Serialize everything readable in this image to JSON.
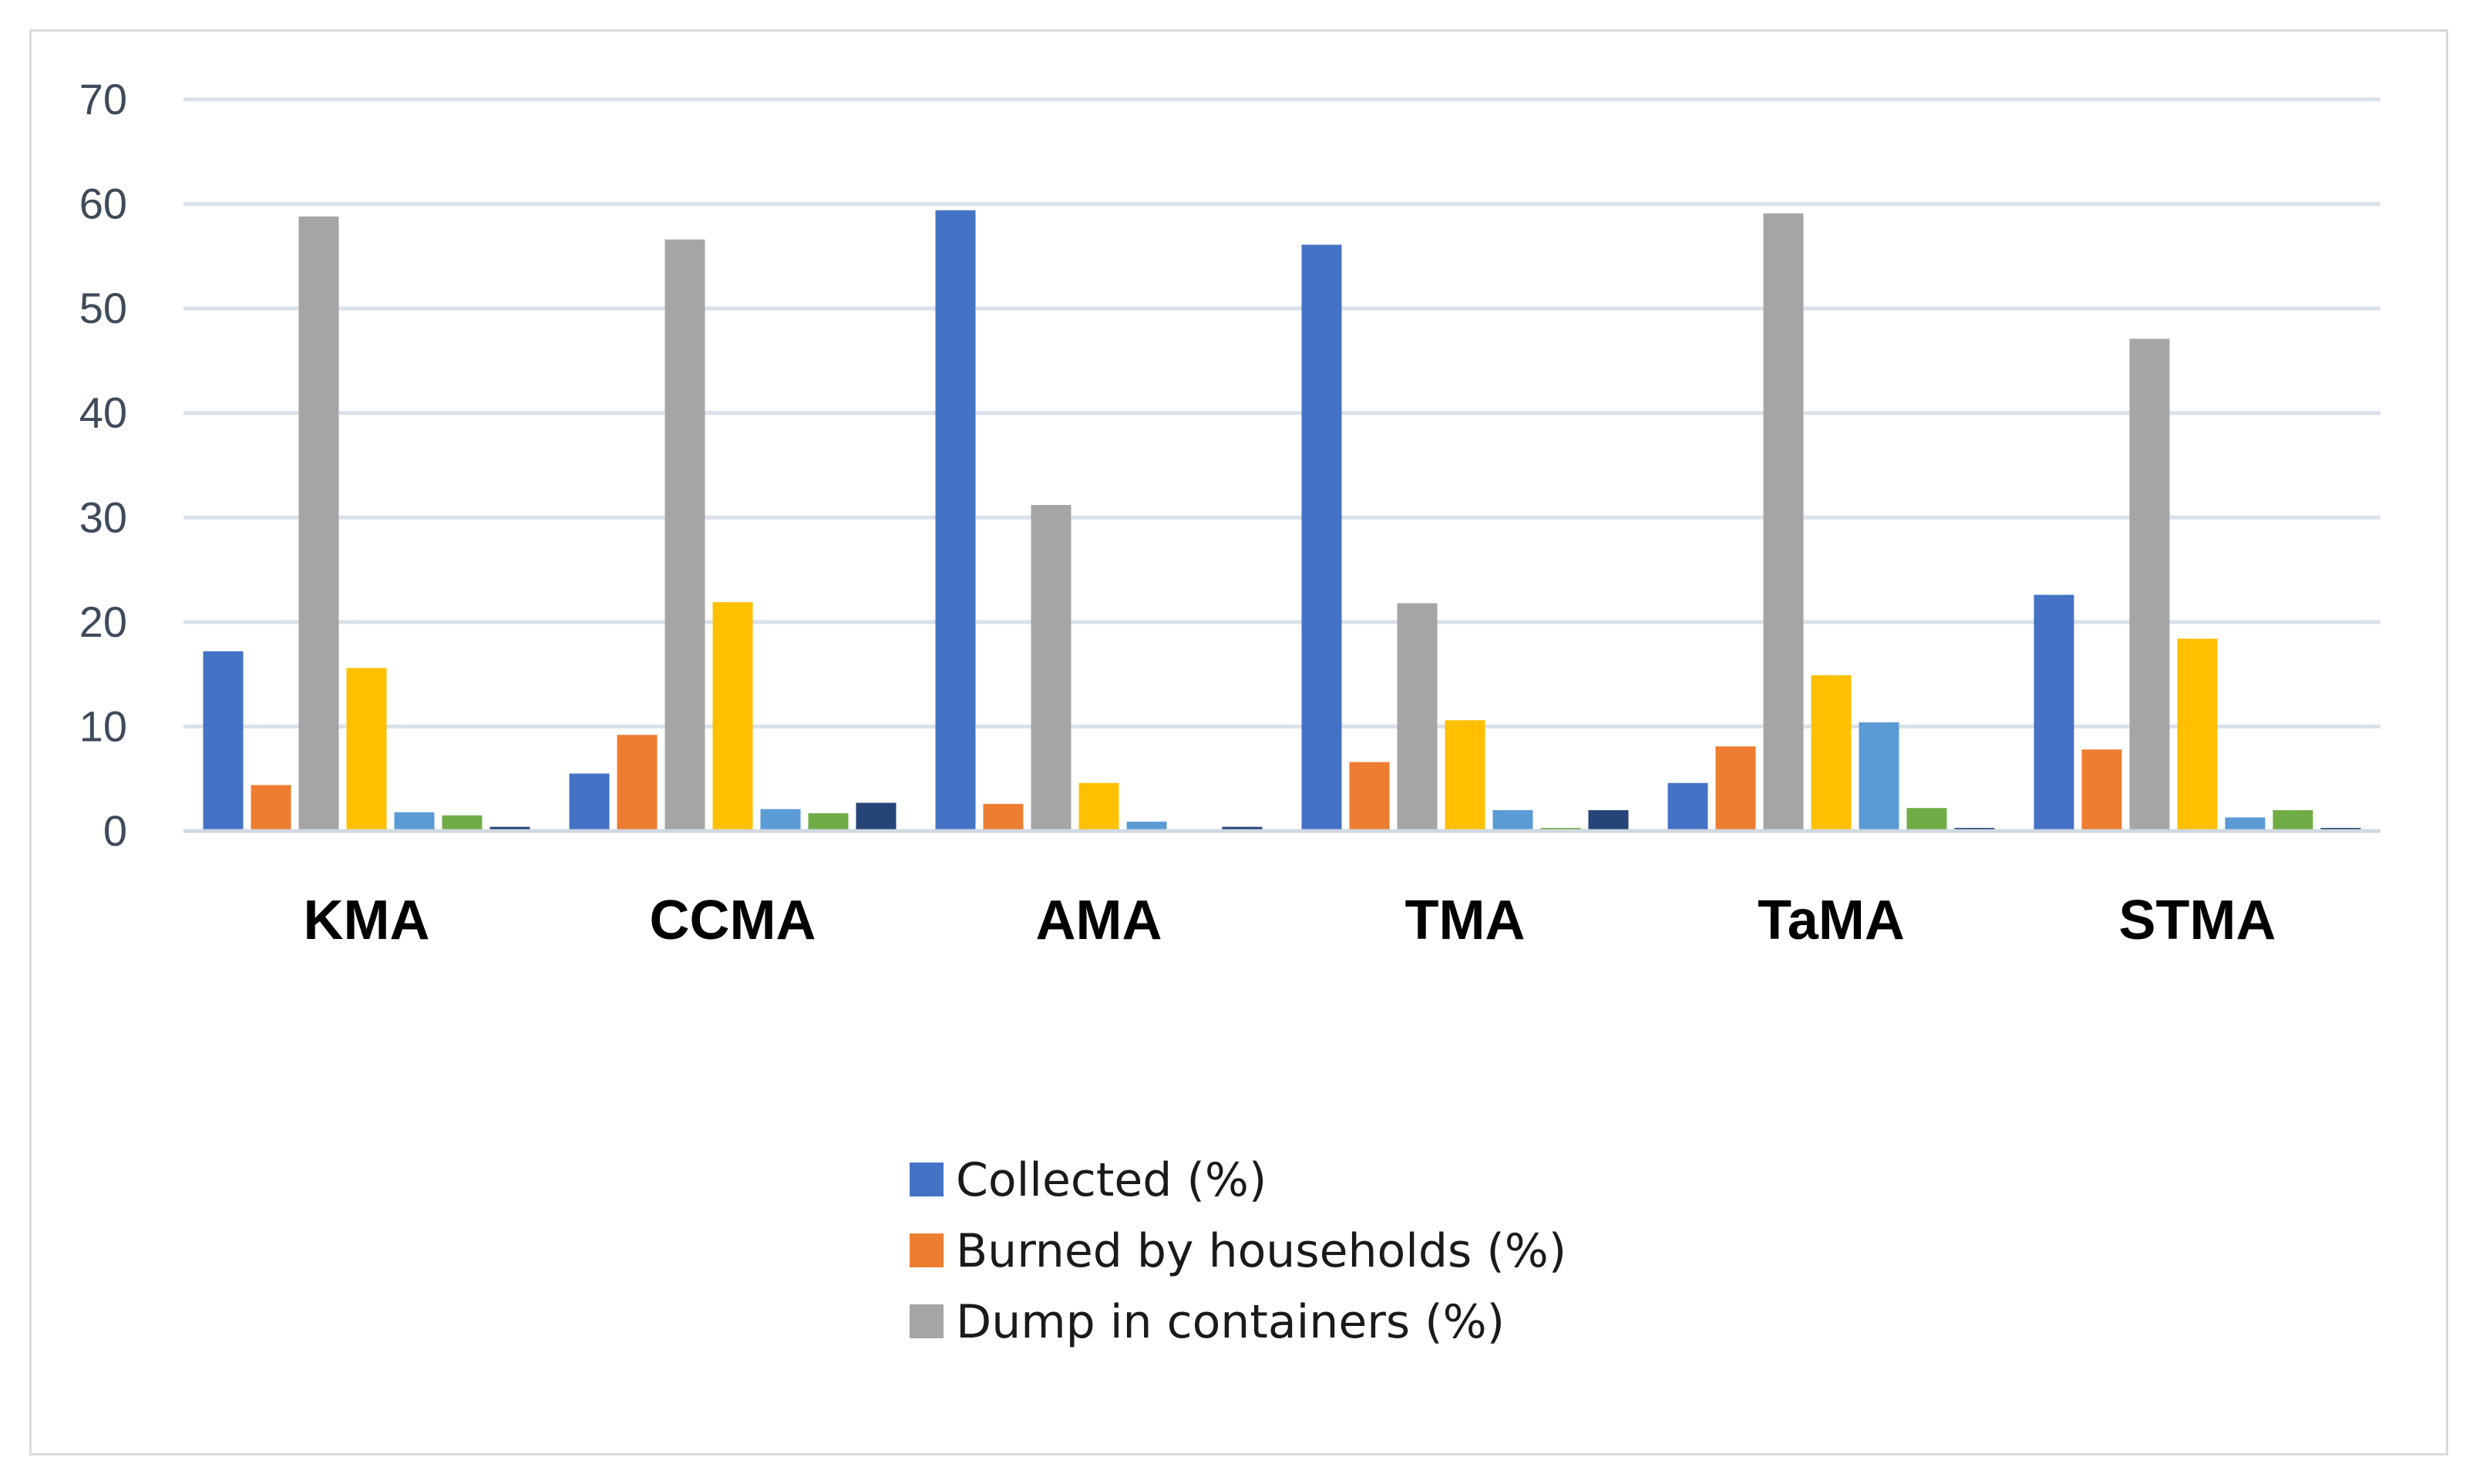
{
  "chart_data": {
    "type": "bar",
    "title": "",
    "xlabel": "",
    "ylabel": "",
    "ylim": [
      0,
      70
    ],
    "yticks": [
      0,
      10,
      20,
      30,
      40,
      50,
      60,
      70
    ],
    "grid": true,
    "legend_position": "bottom-center",
    "categories": [
      "KMA",
      "CCMA",
      "AMA",
      "TMA",
      "TaMA",
      "STMA"
    ],
    "series": [
      {
        "name": "Collected (%)",
        "color": "#4472c4",
        "values": [
          17.2,
          5.5,
          59.4,
          56.1,
          4.6,
          22.6
        ],
        "in_legend": true
      },
      {
        "name": "Burned by households (%)",
        "color": "#ed7d31",
        "values": [
          4.4,
          9.2,
          2.6,
          6.6,
          8.1,
          7.8
        ],
        "in_legend": true
      },
      {
        "name": "Dump in containers (%)",
        "color": "#a5a5a5",
        "values": [
          58.8,
          56.6,
          31.2,
          21.8,
          59.1,
          47.1
        ],
        "in_legend": true
      },
      {
        "name": "",
        "color": "#ffc000",
        "values": [
          15.6,
          21.9,
          4.6,
          10.6,
          14.9,
          18.4
        ],
        "in_legend": false
      },
      {
        "name": "",
        "color": "#5b9bd5",
        "values": [
          1.8,
          2.1,
          0.9,
          2.0,
          10.4,
          1.3
        ],
        "in_legend": false
      },
      {
        "name": "",
        "color": "#70ad47",
        "values": [
          1.5,
          1.7,
          0.0,
          0.3,
          2.2,
          2.0
        ],
        "in_legend": false
      },
      {
        "name": "",
        "color": "#264478",
        "values": [
          0.4,
          2.7,
          0.4,
          2.0,
          0.3,
          0.3
        ],
        "in_legend": false
      }
    ]
  },
  "colors": {
    "grid": "#d9e1ea",
    "axis": "#d0d8e2",
    "frame": "#d9d9d9"
  }
}
